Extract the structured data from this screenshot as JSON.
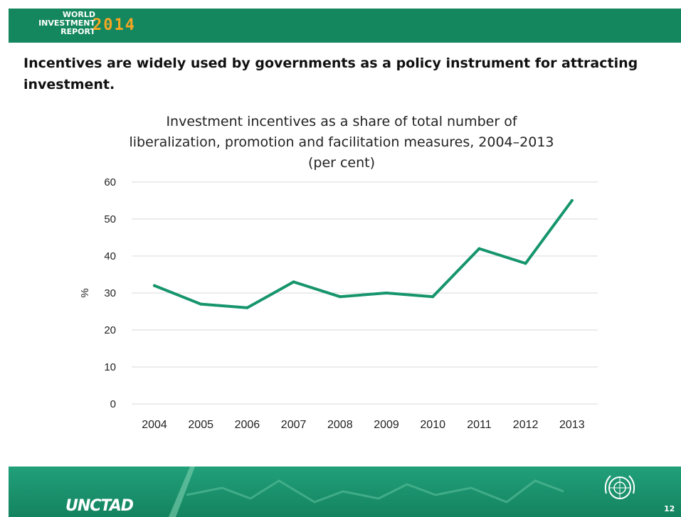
{
  "header": {
    "logo_line1": "WORLD",
    "logo_line2": "INVESTMENT",
    "logo_line3": "REPORT",
    "logo_year": "2014"
  },
  "headline": "Incentives are widely used by governments as a policy instrument for attracting investment.",
  "footer": {
    "brand": "UNCTAD",
    "page_number": "12",
    "emblem_icon": "un-emblem-icon"
  },
  "colors": {
    "brand_green": "#14875f",
    "line_green": "#16956c",
    "logo_orange": "#f5a623"
  },
  "chart_data": {
    "type": "line",
    "title_lines": [
      "Investment  incentives as a share of total number  of",
      "liberalization, promotion and facilitation measures, 2004–2013",
      "(per cent)"
    ],
    "xlabel": "",
    "ylabel": "%",
    "categories": [
      "2004",
      "2005",
      "2006",
      "2007",
      "2008",
      "2009",
      "2010",
      "2011",
      "2012",
      "2013"
    ],
    "values": [
      32,
      27,
      26,
      33,
      29,
      30,
      29,
      42,
      38,
      55
    ],
    "ylim": [
      0,
      60
    ],
    "yticks": [
      0,
      10,
      20,
      30,
      40,
      50,
      60
    ],
    "grid": true,
    "legend": "none"
  }
}
